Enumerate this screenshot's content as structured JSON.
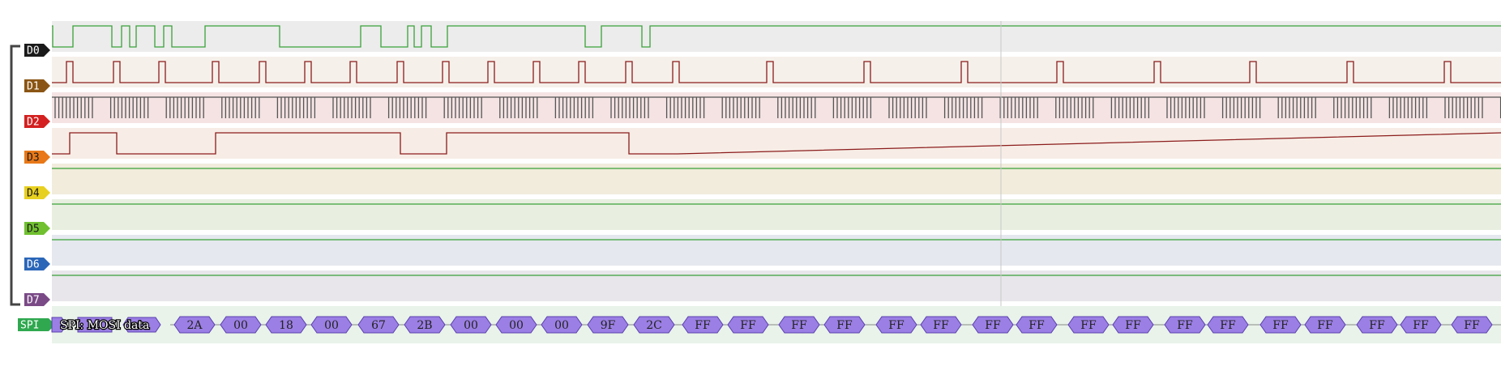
{
  "channels": [
    {
      "name": "D0",
      "color": "#1a1a1a",
      "text": "#ffffff",
      "bg": "#ececec",
      "wave": "#3aa13a",
      "seg": [
        [
          65,
          78,
          0
        ],
        [
          90,
          104,
          1
        ],
        [
          138,
          142,
          0
        ],
        [
          150,
          154,
          1
        ],
        [
          160,
          165,
          0
        ],
        [
          168,
          174,
          1
        ],
        [
          191,
          195,
          0
        ],
        [
          202,
          206,
          1
        ],
        [
          212,
          218,
          0
        ],
        [
          253,
          257,
          1
        ],
        [
          345,
          357,
          0
        ],
        [
          445,
          452,
          1
        ],
        [
          470,
          474,
          0
        ],
        [
          503,
          507,
          1
        ],
        [
          511,
          516,
          0
        ],
        [
          520,
          525,
          1
        ],
        [
          532,
          535,
          0
        ],
        [
          552,
          554,
          1
        ],
        [
          722,
          727,
          0
        ],
        [
          742,
          780,
          1
        ],
        [
          792,
          797,
          0
        ],
        [
          802,
          816,
          1
        ]
      ],
      "start": 1,
      "end": 841
    },
    {
      "name": "D1",
      "color": "#8a5514",
      "text": "#ffffff",
      "bg": "#f6f0ea",
      "wave": "#8b1c1c",
      "pulses": [
        82,
        140,
        196,
        262,
        320,
        376,
        432,
        490,
        546,
        602,
        658,
        714,
        772,
        830,
        946,
        1066,
        1186,
        1304,
        1424,
        1542,
        1662,
        1782
      ],
      "pw": 8
    },
    {
      "name": "D2",
      "color": "#d42020",
      "text": "#ffffff",
      "bg": "#f5e3e3",
      "wave": "#555555"
    },
    {
      "name": "D3",
      "color": "#e87818",
      "text": "#1a1a1a",
      "bg": "#f7ede6",
      "wave": "#8b1c1c",
      "seg": [
        [
          86,
          144,
          1
        ],
        [
          144,
          266,
          0
        ],
        [
          266,
          494,
          1
        ],
        [
          494,
          551,
          0
        ],
        [
          551,
          776,
          1
        ],
        [
          776,
          836,
          0
        ]
      ],
      "start": 0,
      "end": 836
    },
    {
      "name": "D4",
      "color": "#e8d020",
      "text": "#1a1a1a",
      "bg": "#f1ecdc",
      "wave": "#3aa13a"
    },
    {
      "name": "D5",
      "color": "#70c030",
      "text": "#1a1a1a",
      "bg": "#e8efe0",
      "wave": "#3aa13a"
    },
    {
      "name": "D6",
      "color": "#2a66b8",
      "text": "#ffffff",
      "bg": "#e5e8ee",
      "wave": "#3aa13a"
    },
    {
      "name": "D7",
      "color": "#7a4a86",
      "text": "#ffffff",
      "bg": "#e8e6ea",
      "wave": "#3aa13a"
    }
  ],
  "decoder": {
    "name": "SPI",
    "color": "#2fa84f",
    "annotation": "SPI: MOSI data",
    "fill": "#9b7fe4",
    "stroke": "#5a3fb0",
    "bytes": [
      "2A",
      "00",
      "18",
      "00",
      "67",
      "2B",
      "00",
      "00",
      "00",
      "9F",
      "2C",
      "FF",
      "FF",
      "FF",
      "FF",
      "FF",
      "FF",
      "FF",
      "FF",
      "FF",
      "FF",
      "FF",
      "FF",
      "FF",
      "FF",
      "FF",
      "FF",
      "FF"
    ]
  },
  "cursor_color": "#c8c8c8"
}
